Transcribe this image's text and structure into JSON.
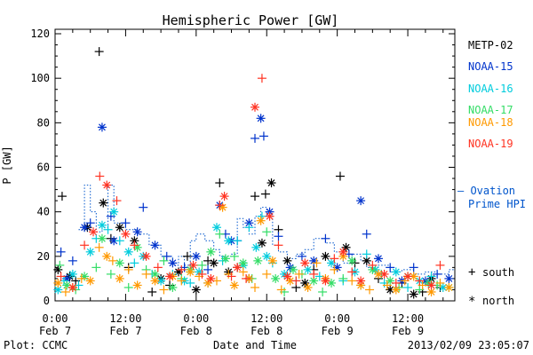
{
  "chart_data": {
    "type": "scatter",
    "title": "Hemispheric Power [GW]",
    "xlabel": "Date and Time",
    "ylabel": "P [GW]",
    "xlim": [
      0,
      68
    ],
    "ylim": [
      0,
      122
    ],
    "grid": false,
    "legend_position": "right",
    "x_unit": "hours after 2013-02-07 00:00 UT",
    "yticks": [
      0,
      20,
      40,
      60,
      80,
      100,
      120
    ],
    "xticks": [
      {
        "hour": 0,
        "time": "0:00",
        "date": "Feb 7"
      },
      {
        "hour": 12,
        "time": "12:00",
        "date": "Feb 7"
      },
      {
        "hour": 24,
        "time": "0:00",
        "date": "Feb 8"
      },
      {
        "hour": 36,
        "time": "12:00",
        "date": "Feb 8"
      },
      {
        "hour": 48,
        "time": "0:00",
        "date": "Feb 9"
      },
      {
        "hour": 60,
        "time": "12:00",
        "date": "Feb 9"
      }
    ],
    "series": [
      {
        "name": "METP-02",
        "color": "#000000",
        "points": [
          [
            0.5,
            14
          ],
          [
            1.2,
            47
          ],
          [
            2.5,
            11
          ],
          [
            3.5,
            9
          ],
          [
            5.5,
            33
          ],
          [
            7.5,
            112
          ],
          [
            8.2,
            44
          ],
          [
            9.5,
            28
          ],
          [
            11,
            33
          ],
          [
            12.5,
            15
          ],
          [
            13.5,
            27
          ],
          [
            16.5,
            4
          ],
          [
            18,
            10
          ],
          [
            19.5,
            7
          ],
          [
            21,
            13
          ],
          [
            22.5,
            20
          ],
          [
            24,
            5
          ],
          [
            26,
            18
          ],
          [
            27,
            17
          ],
          [
            28,
            53
          ],
          [
            29.5,
            13
          ],
          [
            31,
            15
          ],
          [
            33,
            10
          ],
          [
            34,
            47
          ],
          [
            35.2,
            26
          ],
          [
            35.8,
            48
          ],
          [
            36.8,
            53
          ],
          [
            38,
            32
          ],
          [
            39.5,
            18
          ],
          [
            41,
            6
          ],
          [
            42.5,
            8
          ],
          [
            44,
            14
          ],
          [
            46,
            20
          ],
          [
            48.5,
            56
          ],
          [
            49.5,
            24
          ],
          [
            51,
            17
          ],
          [
            53,
            18
          ],
          [
            55,
            10
          ],
          [
            57,
            5
          ],
          [
            59,
            8
          ],
          [
            61,
            3
          ],
          [
            62.5,
            4
          ],
          [
            64,
            10
          ],
          [
            65.5,
            6
          ]
        ]
      },
      {
        "name": "NOAA-15",
        "color": "#0033cc",
        "points": [
          [
            1,
            22
          ],
          [
            2,
            10
          ],
          [
            3,
            18
          ],
          [
            5,
            33
          ],
          [
            6,
            35
          ],
          [
            8,
            78
          ],
          [
            9.5,
            38
          ],
          [
            10,
            27
          ],
          [
            12,
            35
          ],
          [
            14,
            31
          ],
          [
            15,
            42
          ],
          [
            17,
            25
          ],
          [
            19,
            20
          ],
          [
            20,
            17
          ],
          [
            22,
            15
          ],
          [
            24,
            20
          ],
          [
            26,
            14
          ],
          [
            28,
            43
          ],
          [
            29,
            30
          ],
          [
            30,
            27
          ],
          [
            31,
            27
          ],
          [
            33,
            35
          ],
          [
            34,
            73
          ],
          [
            35,
            82
          ],
          [
            35.5,
            74
          ],
          [
            36.5,
            40
          ],
          [
            38,
            29
          ],
          [
            40,
            15
          ],
          [
            42,
            20
          ],
          [
            44,
            18
          ],
          [
            46,
            28
          ],
          [
            48,
            15
          ],
          [
            50,
            21
          ],
          [
            52,
            45
          ],
          [
            53,
            30
          ],
          [
            55,
            19
          ],
          [
            57,
            15
          ],
          [
            59,
            9
          ],
          [
            61,
            15
          ],
          [
            63,
            9
          ],
          [
            65,
            12
          ],
          [
            67,
            10
          ]
        ]
      },
      {
        "name": "NOAA-16",
        "color": "#00ccdd",
        "points": [
          [
            0.5,
            5
          ],
          [
            1.5,
            9
          ],
          [
            3,
            12
          ],
          [
            4,
            7
          ],
          [
            6,
            22
          ],
          [
            7,
            28
          ],
          [
            8,
            34
          ],
          [
            9,
            32
          ],
          [
            10,
            40
          ],
          [
            11,
            27
          ],
          [
            12.5,
            22
          ],
          [
            13.5,
            17
          ],
          [
            15,
            20
          ],
          [
            16.5,
            12
          ],
          [
            18,
            9
          ],
          [
            20,
            12
          ],
          [
            22,
            9
          ],
          [
            23,
            8
          ],
          [
            24.5,
            13
          ],
          [
            26,
            8
          ],
          [
            27.5,
            33
          ],
          [
            28.5,
            18
          ],
          [
            29.5,
            27
          ],
          [
            31,
            27
          ],
          [
            32,
            16
          ],
          [
            33,
            33
          ],
          [
            34.2,
            24
          ],
          [
            35.2,
            38
          ],
          [
            36,
            20
          ],
          [
            37,
            17
          ],
          [
            39,
            12
          ],
          [
            41,
            9
          ],
          [
            43,
            14
          ],
          [
            45,
            11
          ],
          [
            47,
            17
          ],
          [
            49,
            9
          ],
          [
            51,
            13
          ],
          [
            53,
            21
          ],
          [
            54.5,
            14
          ],
          [
            56,
            8
          ],
          [
            58,
            13
          ],
          [
            60,
            6
          ],
          [
            62,
            9
          ],
          [
            64,
            11
          ],
          [
            66,
            6
          ]
        ]
      },
      {
        "name": "NOAA-17",
        "color": "#33dd66",
        "points": [
          [
            0.8,
            16
          ],
          [
            2,
            7
          ],
          [
            3.5,
            5
          ],
          [
            5,
            11
          ],
          [
            7,
            15
          ],
          [
            8,
            28
          ],
          [
            9.5,
            12
          ],
          [
            11,
            17
          ],
          [
            12.5,
            6
          ],
          [
            14,
            24
          ],
          [
            15.5,
            14
          ],
          [
            17,
            12
          ],
          [
            18.5,
            18
          ],
          [
            20,
            6
          ],
          [
            21.5,
            10
          ],
          [
            23,
            14
          ],
          [
            25,
            16
          ],
          [
            26.5,
            22
          ],
          [
            28,
            30
          ],
          [
            29,
            19
          ],
          [
            30.5,
            20
          ],
          [
            32,
            17
          ],
          [
            33.5,
            10
          ],
          [
            34.5,
            18
          ],
          [
            36,
            31
          ],
          [
            37.5,
            10
          ],
          [
            39,
            4
          ],
          [
            40.5,
            14
          ],
          [
            42,
            12
          ],
          [
            44,
            9
          ],
          [
            45.5,
            4
          ],
          [
            47,
            8
          ],
          [
            49,
            10
          ],
          [
            50.5,
            18
          ],
          [
            52,
            7
          ],
          [
            54,
            14
          ],
          [
            55.5,
            12
          ],
          [
            57,
            9
          ],
          [
            58.5,
            6
          ],
          [
            60,
            11
          ],
          [
            62,
            5
          ],
          [
            63.5,
            8
          ],
          [
            65,
            7
          ],
          [
            67,
            6
          ]
        ]
      },
      {
        "name": "NOAA-18",
        "color": "#ff9900",
        "points": [
          [
            0.5,
            8
          ],
          [
            1.8,
            4
          ],
          [
            3,
            6
          ],
          [
            4.5,
            10
          ],
          [
            6,
            9
          ],
          [
            7.5,
            24
          ],
          [
            8.8,
            20
          ],
          [
            9.8,
            18
          ],
          [
            11,
            10
          ],
          [
            12.5,
            14
          ],
          [
            14,
            7
          ],
          [
            15.5,
            12
          ],
          [
            17,
            9
          ],
          [
            18.5,
            5
          ],
          [
            20,
            11
          ],
          [
            21.5,
            9
          ],
          [
            23,
            13
          ],
          [
            24.5,
            11
          ],
          [
            26,
            8
          ],
          [
            27.5,
            9
          ],
          [
            28.5,
            42
          ],
          [
            29.5,
            12
          ],
          [
            30.5,
            7
          ],
          [
            32,
            13
          ],
          [
            33,
            10
          ],
          [
            34,
            6
          ],
          [
            35,
            36
          ],
          [
            36,
            12
          ],
          [
            37,
            18
          ],
          [
            38.5,
            5
          ],
          [
            40,
            9
          ],
          [
            41.5,
            12
          ],
          [
            43,
            6
          ],
          [
            44.5,
            17
          ],
          [
            46,
            10
          ],
          [
            47.5,
            14
          ],
          [
            49,
            20
          ],
          [
            50.5,
            9
          ],
          [
            52,
            7
          ],
          [
            53.5,
            5
          ],
          [
            55,
            12
          ],
          [
            56.5,
            7
          ],
          [
            58,
            5
          ],
          [
            59.5,
            9
          ],
          [
            61,
            11
          ],
          [
            62.5,
            7
          ],
          [
            64,
            4
          ],
          [
            65.5,
            8
          ],
          [
            67,
            6
          ]
        ]
      },
      {
        "name": "NOAA-19",
        "color": "#ff3322",
        "points": [
          [
            1,
            11
          ],
          [
            3,
            6
          ],
          [
            5,
            25
          ],
          [
            6.5,
            31
          ],
          [
            7.6,
            56
          ],
          [
            8.8,
            52
          ],
          [
            10.5,
            45
          ],
          [
            12,
            30
          ],
          [
            13.5,
            25
          ],
          [
            15.5,
            20
          ],
          [
            17.5,
            15
          ],
          [
            19.5,
            11
          ],
          [
            21.5,
            14
          ],
          [
            23.5,
            16
          ],
          [
            25,
            12
          ],
          [
            26.5,
            10
          ],
          [
            28,
            43
          ],
          [
            28.8,
            47
          ],
          [
            30,
            11
          ],
          [
            31,
            15
          ],
          [
            32.5,
            10
          ],
          [
            34,
            87
          ],
          [
            35.2,
            100
          ],
          [
            36.5,
            38
          ],
          [
            38,
            25
          ],
          [
            39.5,
            11
          ],
          [
            41,
            9
          ],
          [
            42.5,
            17
          ],
          [
            44,
            12
          ],
          [
            46,
            9
          ],
          [
            47.5,
            19
          ],
          [
            49,
            22
          ],
          [
            50.5,
            13
          ],
          [
            52,
            9
          ],
          [
            54,
            16
          ],
          [
            56,
            12
          ],
          [
            58,
            8
          ],
          [
            60,
            11
          ],
          [
            62,
            9
          ],
          [
            64,
            7
          ],
          [
            65.5,
            16
          ]
        ]
      }
    ],
    "reference_series": {
      "name": "Ovation Prime HPI",
      "color": "#0055cc",
      "style": "dotted-step",
      "points": [
        [
          4,
          32
        ],
        [
          5,
          52
        ],
        [
          6,
          40
        ],
        [
          7,
          31
        ],
        [
          8,
          33
        ],
        [
          9,
          52
        ],
        [
          10,
          35
        ],
        [
          12,
          32
        ],
        [
          14,
          30
        ],
        [
          16,
          25
        ],
        [
          18,
          20
        ],
        [
          20,
          16
        ],
        [
          21,
          20
        ],
        [
          22,
          16
        ],
        [
          23,
          27
        ],
        [
          24,
          30
        ],
        [
          25.5,
          27
        ],
        [
          27,
          23
        ],
        [
          28,
          20
        ],
        [
          30,
          21
        ],
        [
          31,
          37
        ],
        [
          32,
          33
        ],
        [
          33,
          30
        ],
        [
          34,
          38
        ],
        [
          35,
          42
        ],
        [
          36,
          38
        ],
        [
          37,
          25
        ],
        [
          38,
          22
        ],
        [
          39.5,
          19
        ],
        [
          41,
          21
        ],
        [
          42.5,
          23
        ],
        [
          44,
          28
        ],
        [
          46,
          26
        ],
        [
          47.5,
          22
        ],
        [
          49,
          17
        ],
        [
          50.5,
          21
        ],
        [
          52,
          18
        ],
        [
          53,
          15
        ],
        [
          55,
          16
        ],
        [
          57,
          13
        ],
        [
          59,
          14
        ],
        [
          61,
          12
        ],
        [
          63,
          13
        ],
        [
          65,
          12
        ],
        [
          67,
          14
        ]
      ]
    }
  },
  "legend": {
    "series_labels": [
      "METP-02",
      "NOAA-15",
      "NOAA-16",
      "NOAA-17",
      "NOAA-18",
      "NOAA-19"
    ],
    "ovation_line1": "– Ovation",
    "ovation_line2": "Prime HPI",
    "south_symbol": "+",
    "south_label": "south",
    "north_symbol": "*",
    "north_label": "north"
  },
  "footer": {
    "left": "Plot: CCMC",
    "right": "2013/02/09 23:05:07"
  }
}
